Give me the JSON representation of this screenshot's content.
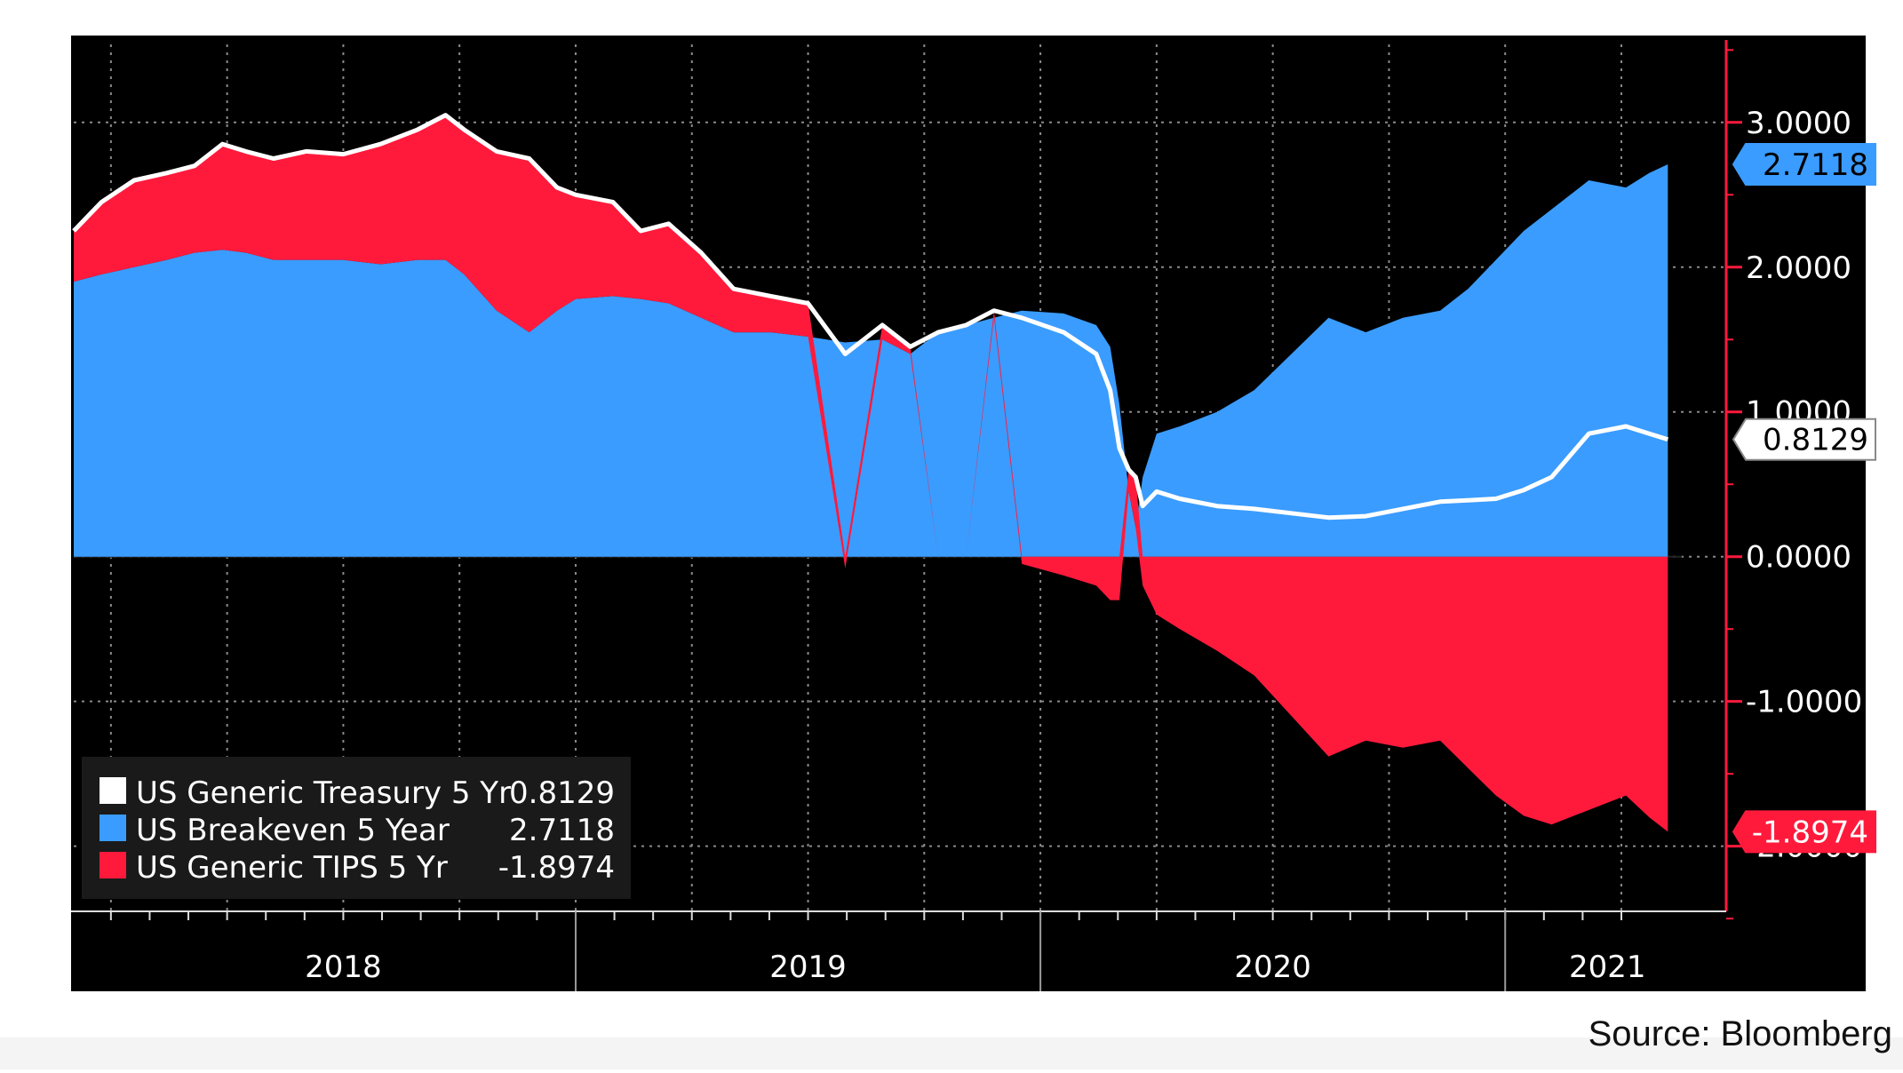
{
  "source_label": "Source: Bloomberg",
  "colors": {
    "background": "#000000",
    "treasury": "#ffffff",
    "breakeven": "#3a9cff",
    "tips": "#ff1a3c",
    "axis": "#ff1a3c",
    "grid": "#8a8a8a",
    "text": "#ffffff"
  },
  "chart_data": {
    "type": "area",
    "title": "",
    "xlabel": "",
    "ylabel": "",
    "x_range": [
      2017.92,
      2021.38
    ],
    "ylim": [
      -2.45,
      3.6
    ],
    "y_ticks": [
      {
        "value": 3.0,
        "label": "3.0000"
      },
      {
        "value": 2.0,
        "label": "2.0000"
      },
      {
        "value": 1.0,
        "label": "1.0000"
      },
      {
        "value": 0.0,
        "label": "0.0000"
      },
      {
        "value": -1.0,
        "label": "-1.0000"
      },
      {
        "value": -2.0,
        "label": "-2.0000"
      }
    ],
    "x_labels": [
      {
        "value": 2018.5,
        "label": "2018"
      },
      {
        "value": 2019.5,
        "label": "2019"
      },
      {
        "value": 2020.5,
        "label": "2020"
      },
      {
        "value": 2021.22,
        "label": "2021"
      }
    ],
    "x_dividers": [
      2019.0,
      2020.0,
      2021.0
    ],
    "grid": true,
    "legend_position": "bottom-left",
    "x": [
      2017.92,
      2017.98,
      2018.05,
      2018.12,
      2018.18,
      2018.24,
      2018.29,
      2018.35,
      2018.42,
      2018.5,
      2018.58,
      2018.66,
      2018.72,
      2018.76,
      2018.83,
      2018.9,
      2018.96,
      2019.0,
      2019.08,
      2019.14,
      2019.2,
      2019.27,
      2019.34,
      2019.42,
      2019.5,
      2019.58,
      2019.66,
      2019.72,
      2019.78,
      2019.84,
      2019.9,
      2019.96,
      2020.05,
      2020.12,
      2020.15,
      2020.17,
      2020.19,
      2020.205,
      2020.22,
      2020.25,
      2020.3,
      2020.38,
      2020.46,
      2020.54,
      2020.62,
      2020.7,
      2020.78,
      2020.86,
      2020.92,
      2020.98,
      2021.04,
      2021.1,
      2021.18,
      2021.26,
      2021.31,
      2021.35
    ],
    "series": [
      {
        "name": "US Generic Treasury 5 Yr",
        "last_value": "0.8129",
        "values": [
          2.25,
          2.45,
          2.6,
          2.65,
          2.7,
          2.85,
          2.8,
          2.75,
          2.8,
          2.78,
          2.85,
          2.95,
          3.05,
          2.95,
          2.8,
          2.75,
          2.55,
          2.5,
          2.45,
          2.25,
          2.3,
          2.1,
          1.85,
          1.8,
          1.75,
          1.4,
          1.6,
          1.45,
          1.55,
          1.6,
          1.7,
          1.65,
          1.55,
          1.4,
          1.15,
          0.75,
          0.6,
          0.55,
          0.35,
          0.45,
          0.4,
          0.35,
          0.33,
          0.3,
          0.27,
          0.28,
          0.33,
          0.38,
          0.39,
          0.4,
          0.46,
          0.55,
          0.85,
          0.9,
          0.85,
          0.81
        ]
      },
      {
        "name": "US Breakeven 5 Year",
        "last_value": "2.7118",
        "values": [
          1.9,
          1.95,
          2.0,
          2.05,
          2.1,
          2.12,
          2.1,
          2.05,
          2.05,
          2.05,
          2.02,
          2.05,
          2.05,
          1.95,
          1.7,
          1.55,
          1.7,
          1.78,
          1.8,
          1.78,
          1.75,
          1.65,
          1.55,
          1.55,
          1.52,
          1.48,
          1.5,
          1.4,
          1.55,
          1.6,
          1.65,
          1.7,
          1.68,
          1.6,
          1.45,
          1.05,
          0.45,
          0.2,
          0.55,
          0.85,
          0.9,
          1.0,
          1.15,
          1.4,
          1.65,
          1.55,
          1.65,
          1.7,
          1.85,
          2.05,
          2.25,
          2.4,
          2.6,
          2.55,
          2.65,
          2.71
        ]
      },
      {
        "name": "US Generic TIPS 5 Yr",
        "last_value": "-1.8974",
        "values": [
          0.35,
          0.5,
          0.6,
          0.6,
          0.6,
          0.73,
          0.7,
          0.7,
          0.75,
          0.73,
          0.83,
          0.9,
          1.0,
          1.0,
          1.1,
          1.2,
          0.85,
          0.72,
          0.65,
          0.47,
          0.55,
          0.45,
          0.3,
          0.25,
          0.23,
          -0.08,
          0.1,
          0.05,
          0.0,
          0.0,
          0.05,
          -0.05,
          -0.13,
          -0.2,
          -0.3,
          -0.3,
          0.15,
          0.35,
          -0.2,
          -0.4,
          -0.5,
          -0.65,
          -0.82,
          -1.1,
          -1.38,
          -1.27,
          -1.32,
          -1.27,
          -1.46,
          -1.65,
          -1.79,
          -1.85,
          -1.75,
          -1.65,
          -1.8,
          -1.9
        ]
      }
    ]
  }
}
